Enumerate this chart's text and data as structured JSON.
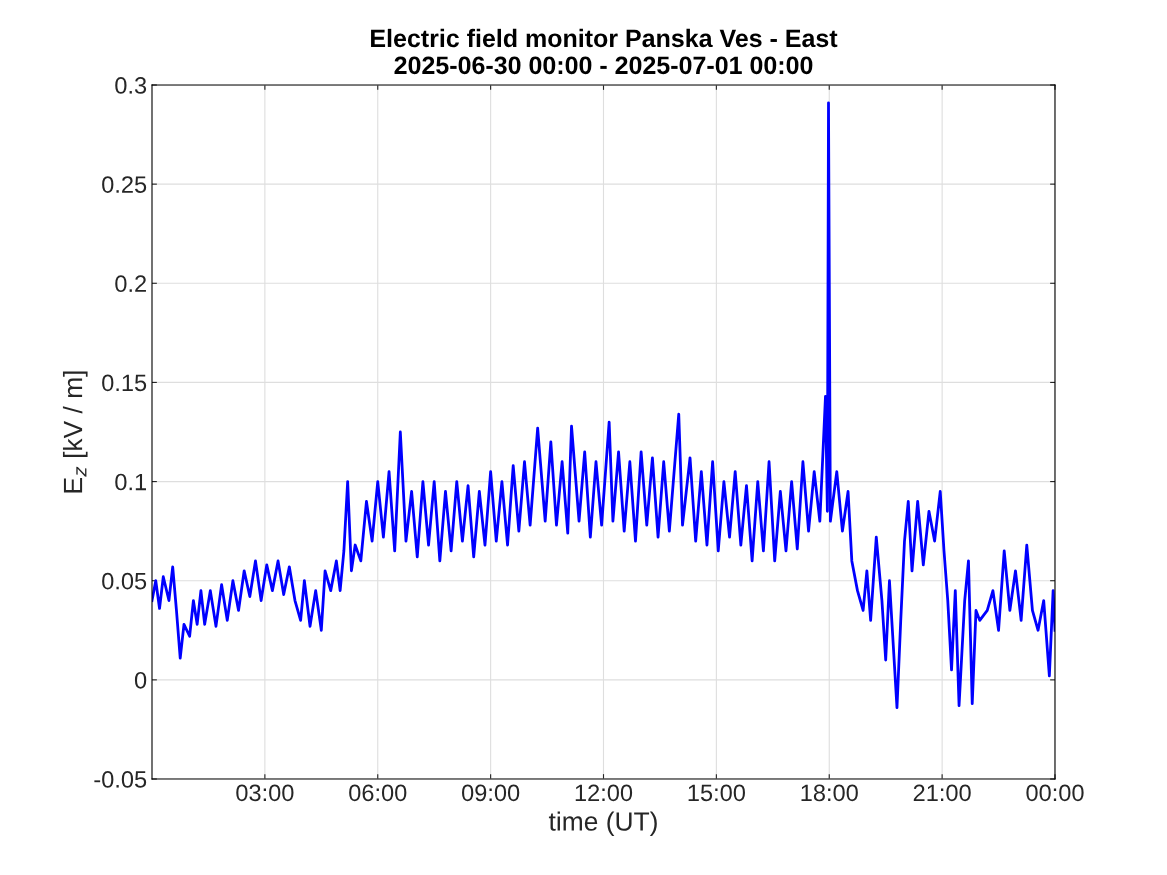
{
  "chart_data": {
    "type": "line",
    "title": "Electric field monitor Panska Ves - East\n2025-06-30 00:00 - 2025-07-01 00:00",
    "xlabel": "time (UT)",
    "ylabel": "E$_{z}$ [kV / m]",
    "x": [
      0.0,
      0.1,
      0.2,
      0.3,
      0.45,
      0.55,
      0.65,
      0.75,
      0.85,
      1.0,
      1.1,
      1.2,
      1.3,
      1.4,
      1.55,
      1.7,
      1.85,
      2.0,
      2.15,
      2.3,
      2.45,
      2.6,
      2.75,
      2.9,
      3.05,
      3.2,
      3.35,
      3.5,
      3.65,
      3.8,
      3.95,
      4.05,
      4.2,
      4.35,
      4.5,
      4.6,
      4.75,
      4.9,
      5.0,
      5.1,
      5.2,
      5.3,
      5.4,
      5.55,
      5.7,
      5.85,
      6.0,
      6.15,
      6.3,
      6.45,
      6.6,
      6.75,
      6.9,
      7.05,
      7.2,
      7.35,
      7.5,
      7.65,
      7.8,
      7.95,
      8.1,
      8.25,
      8.4,
      8.55,
      8.7,
      8.85,
      9.0,
      9.15,
      9.3,
      9.45,
      9.6,
      9.75,
      9.9,
      10.05,
      10.25,
      10.45,
      10.6,
      10.75,
      10.9,
      11.05,
      11.15,
      11.35,
      11.5,
      11.65,
      11.8,
      11.95,
      12.15,
      12.25,
      12.4,
      12.55,
      12.7,
      12.85,
      13.0,
      13.15,
      13.3,
      13.45,
      13.6,
      13.75,
      14.0,
      14.1,
      14.3,
      14.45,
      14.6,
      14.75,
      14.9,
      15.05,
      15.2,
      15.35,
      15.5,
      15.65,
      15.8,
      15.95,
      16.1,
      16.25,
      16.4,
      16.55,
      16.7,
      16.85,
      17.0,
      17.15,
      17.3,
      17.45,
      17.6,
      17.75,
      17.9,
      17.95,
      17.98,
      18.03,
      18.2,
      18.35,
      18.5,
      18.6,
      18.75,
      18.9,
      19.0,
      19.1,
      19.25,
      19.4,
      19.5,
      19.6,
      19.8,
      19.9,
      20.0,
      20.1,
      20.2,
      20.35,
      20.5,
      20.65,
      20.8,
      20.95,
      21.05,
      21.15,
      21.25,
      21.35,
      21.45,
      21.6,
      21.7,
      21.8,
      21.9,
      22.0,
      22.2,
      22.35,
      22.5,
      22.65,
      22.8,
      22.95,
      23.1,
      23.25,
      23.4,
      23.55,
      23.7,
      23.85,
      23.95,
      24.0
    ],
    "values": [
      0.04,
      0.05,
      0.036,
      0.052,
      0.04,
      0.057,
      0.035,
      0.011,
      0.028,
      0.022,
      0.04,
      0.028,
      0.045,
      0.028,
      0.045,
      0.027,
      0.048,
      0.03,
      0.05,
      0.035,
      0.055,
      0.042,
      0.06,
      0.04,
      0.058,
      0.045,
      0.06,
      0.043,
      0.057,
      0.04,
      0.03,
      0.05,
      0.027,
      0.045,
      0.025,
      0.055,
      0.045,
      0.06,
      0.045,
      0.065,
      0.1,
      0.055,
      0.068,
      0.06,
      0.09,
      0.07,
      0.1,
      0.072,
      0.105,
      0.065,
      0.125,
      0.07,
      0.095,
      0.062,
      0.1,
      0.068,
      0.1,
      0.06,
      0.095,
      0.065,
      0.1,
      0.07,
      0.098,
      0.062,
      0.095,
      0.068,
      0.105,
      0.07,
      0.1,
      0.068,
      0.108,
      0.075,
      0.11,
      0.078,
      0.127,
      0.08,
      0.12,
      0.078,
      0.11,
      0.074,
      0.128,
      0.08,
      0.115,
      0.072,
      0.11,
      0.078,
      0.13,
      0.08,
      0.115,
      0.075,
      0.11,
      0.07,
      0.115,
      0.078,
      0.112,
      0.072,
      0.11,
      0.075,
      0.134,
      0.078,
      0.112,
      0.07,
      0.105,
      0.068,
      0.11,
      0.065,
      0.1,
      0.072,
      0.105,
      0.068,
      0.098,
      0.06,
      0.1,
      0.065,
      0.11,
      0.06,
      0.095,
      0.065,
      0.1,
      0.066,
      0.11,
      0.075,
      0.105,
      0.08,
      0.143,
      0.085,
      0.291,
      0.08,
      0.105,
      0.075,
      0.095,
      0.06,
      0.045,
      0.035,
      0.055,
      0.03,
      0.072,
      0.04,
      0.01,
      0.05,
      -0.014,
      0.03,
      0.07,
      0.09,
      0.055,
      0.09,
      0.058,
      0.085,
      0.07,
      0.095,
      0.065,
      0.04,
      0.005,
      0.045,
      -0.013,
      0.04,
      0.06,
      -0.012,
      0.035,
      0.03,
      0.035,
      0.045,
      0.025,
      0.065,
      0.035,
      0.055,
      0.03,
      0.068,
      0.035,
      0.025,
      0.04,
      0.002,
      0.045,
      0.025
    ],
    "color": "#0000ff",
    "xlim": [
      0,
      24
    ],
    "xticks": [
      {
        "value": 3,
        "label": "03:00"
      },
      {
        "value": 6,
        "label": "06:00"
      },
      {
        "value": 9,
        "label": "09:00"
      },
      {
        "value": 12,
        "label": "12:00"
      },
      {
        "value": 15,
        "label": "15:00"
      },
      {
        "value": 18,
        "label": "18:00"
      },
      {
        "value": 21,
        "label": "21:00"
      },
      {
        "value": 24,
        "label": "00:00"
      }
    ],
    "ylim": [
      -0.05,
      0.3
    ],
    "yticks": [
      {
        "value": -0.05,
        "label": "-0.05"
      },
      {
        "value": 0,
        "label": "0"
      },
      {
        "value": 0.05,
        "label": "0.05"
      },
      {
        "value": 0.1,
        "label": "0.1"
      },
      {
        "value": 0.15,
        "label": "0.15"
      },
      {
        "value": 0.2,
        "label": "0.2"
      },
      {
        "value": 0.25,
        "label": "0.25"
      },
      {
        "value": 0.3,
        "label": "0.3"
      }
    ],
    "grid": true,
    "line_style": "solid"
  }
}
